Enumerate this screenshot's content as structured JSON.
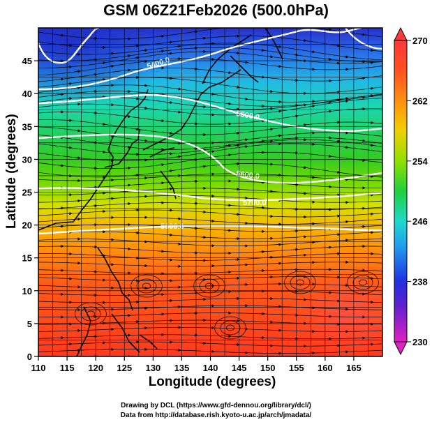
{
  "title": "GSM 06Z21Feb2026 (500.0hPa)",
  "xlabel": "Longitude (degrees)",
  "ylabel": "Latitude  (degrees)",
  "credit_line1": "Drawing by DCL (https://www.gfd-dennou.org/library/dcl/)",
  "credit_line2": "Data from http://database.rish.kyoto-u.ac.jp/arch/jmadata/",
  "map": {
    "lon_range": [
      110,
      170
    ],
    "lat_range": [
      0,
      50
    ],
    "lon_ticks": [
      "110",
      "115",
      "120",
      "125",
      "130",
      "135",
      "140",
      "145",
      "150",
      "155",
      "160",
      "165"
    ],
    "lat_ticks": [
      "0",
      "5",
      "10",
      "15",
      "20",
      "25",
      "30",
      "35",
      "40",
      "45"
    ],
    "contour_labels": [
      "5400.0",
      "5500.0",
      "5600.0",
      "5700.0",
      "5800.0"
    ],
    "colorbar_ticks": [
      "230",
      "238",
      "246",
      "254",
      "262",
      "270"
    ],
    "colorbar_range": [
      230,
      270
    ]
  },
  "colors": {
    "accent": "#ffffff",
    "frame": "#000000"
  }
}
